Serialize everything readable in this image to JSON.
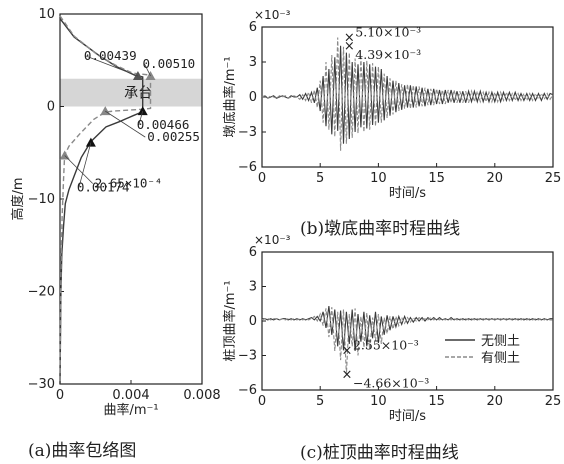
{
  "chart_data": [
    {
      "type": "line",
      "panel": "a",
      "caption": "(a)曲率包络图",
      "xlabel": "曲率/m⁻¹",
      "ylabel": "高度/m",
      "xlim": [
        0,
        0.008
      ],
      "ylim": [
        -30,
        10
      ],
      "xticks": [
        "0",
        "0.004",
        "0.008"
      ],
      "yticks": [
        "10",
        "0",
        "−10",
        "−20",
        "−30"
      ],
      "cap_label": "承台",
      "cap_range": [
        0,
        3
      ],
      "series": [
        {
          "name": "无侧土",
          "style": "solid",
          "x": [
            0,
            0.0008,
            0.0022,
            0.0032,
            0.0042,
            0.00466,
            0.00466,
            0.0046,
            0.0041,
            0.0034,
            0.0026,
            0.00174,
            0.0012,
            0.0008,
            0.0005,
            0.0003,
            0.0002,
            0.0001,
            5e-05,
            0
          ],
          "y": [
            9.5,
            7.5,
            5.5,
            4.3,
            3.4,
            3.2,
            -0.5,
            -0.6,
            -1,
            -1.6,
            -2.2,
            -3.8,
            -5.5,
            -7.5,
            -9,
            -10.5,
            -13,
            -16,
            -20,
            -30
          ]
        },
        {
          "name": "有侧土",
          "style": "dashed",
          "x": [
            0,
            0.0008,
            0.0021,
            0.0031,
            0.0041,
            0.0051,
            0.0051,
            0.0046,
            0.0038,
            0.003,
            0.00255,
            0.0019,
            0.0011,
            0.0005,
            0.00026,
            0.0002,
            0.00012,
            5e-05,
            0
          ],
          "y": [
            9.8,
            7.6,
            5.6,
            4.5,
            3.6,
            3.4,
            -0.2,
            -0.3,
            -0.4,
            -0.5,
            -0.6,
            -1.4,
            -3,
            -4.3,
            -5.3,
            -8,
            -12,
            -18,
            -30
          ]
        }
      ],
      "markers": [
        {
          "x": 0.00439,
          "y": 3.3,
          "color": "#555555",
          "label": "0.00439"
        },
        {
          "x": 0.0051,
          "y": 3.3,
          "color": "#888888",
          "label": "0.00510"
        },
        {
          "x": 0.00466,
          "y": -0.5,
          "color": "#111111",
          "label": "0.00466"
        },
        {
          "x": 0.00255,
          "y": -0.5,
          "color": "#888888",
          "label": "0.00255"
        },
        {
          "x": 0.00174,
          "y": -3.9,
          "color": "#111111",
          "label": "0.00174"
        },
        {
          "x": 0.000265,
          "y": -5.3,
          "color": "#888888",
          "label": "2.65×10⁻⁴"
        }
      ]
    },
    {
      "type": "line",
      "panel": "b",
      "caption": "(b)墩底曲率时程曲线",
      "xlabel": "时间/s",
      "ylabel": "墩底曲率/m⁻¹",
      "scale_label": "×10⁻³",
      "xlim": [
        0,
        25
      ],
      "ylim": [
        -6,
        6
      ],
      "xticks": [
        "0",
        "5",
        "10",
        "15",
        "20",
        "25"
      ],
      "yticks": [
        "6",
        "3",
        "0",
        "−3",
        "−6"
      ],
      "annotations": [
        {
          "x": 7.5,
          "y": 5.1,
          "label": "5.10×10⁻³"
        },
        {
          "x": 7.5,
          "y": 4.39,
          "label": "4.39×10⁻³"
        }
      ],
      "series": [
        {
          "name": "无侧土",
          "style": "solid",
          "x_start": 0,
          "dt": 0.25,
          "values": [
            0,
            0.1,
            -0.1,
            0,
            0.1,
            -0.1,
            0,
            0.1,
            0,
            -0.1,
            0.1,
            0,
            0,
            0.2,
            -0.2,
            0.3,
            -0.3,
            0.4,
            -0.5,
            0.8,
            -1.2,
            1.8,
            -2.5,
            2.4,
            -3.2,
            3.4,
            -2.9,
            4.39,
            -4.0,
            3.8,
            -3.6,
            3.0,
            -3.0,
            2.8,
            -2.6,
            3.0,
            -2.7,
            2.8,
            -2.4,
            2.6,
            -2.2,
            2.4,
            -2.0,
            1.8,
            -1.6,
            1.4,
            -1.3,
            1.2,
            -1.1,
            1.0,
            -0.9,
            1.0,
            -0.9,
            0.9,
            -0.8,
            0.8,
            -0.8,
            0.7,
            -0.7,
            0.7,
            -0.6,
            0.6,
            -0.6,
            0.6,
            -0.5,
            0.6,
            -0.5,
            0.5,
            -0.5,
            0.5,
            -0.5,
            0.5,
            -0.4,
            0.5,
            -0.4,
            0.5,
            -0.4,
            0.4,
            -0.4,
            0.4,
            -0.4,
            0.4,
            -0.4,
            0.4,
            -0.3,
            0.4,
            -0.3,
            0.4,
            -0.3,
            0.3,
            -0.3,
            0.3,
            -0.3,
            0.3,
            -0.3,
            0.3,
            -0.3,
            0.3,
            -0.2,
            0.3,
            0.2
          ]
        },
        {
          "name": "有侧土",
          "style": "dashed",
          "x_start": 0,
          "dt": 0.25,
          "values": [
            0,
            0.1,
            -0.1,
            0.1,
            0,
            -0.1,
            0.1,
            0,
            0.1,
            -0.1,
            0,
            0.1,
            0,
            -0.2,
            0.2,
            -0.3,
            0.4,
            -0.5,
            0.6,
            -0.9,
            1.4,
            -2.2,
            3.0,
            -2.8,
            3.6,
            -3.4,
            5.1,
            -4.6,
            4.3,
            -4.0,
            3.8,
            -3.5,
            3.3,
            -3.1,
            3.4,
            -3.0,
            3.1,
            -2.8,
            2.9,
            -2.5,
            2.6,
            -2.2,
            2.0,
            -1.8,
            1.6,
            -1.5,
            1.4,
            -1.2,
            1.1,
            -1.0,
            1.1,
            -1.0,
            1.0,
            -0.9,
            0.9,
            -0.8,
            0.8,
            -0.7,
            0.7,
            -0.7,
            0.7,
            -0.6,
            0.6,
            -0.6,
            0.6,
            -0.5,
            0.6,
            -0.5,
            0.5,
            -0.5,
            0.5,
            -0.5,
            0.5,
            -0.4,
            0.5,
            -0.4,
            0.4,
            -0.4,
            0.4,
            -0.4,
            0.4,
            -0.4,
            0.4,
            -0.3,
            0.4,
            -0.3,
            0.3,
            -0.3,
            0.3,
            -0.3,
            0.3,
            -0.3,
            0.3,
            -0.3,
            0.3,
            -0.2,
            0.3,
            -0.2,
            0.3,
            -0.2,
            0.2
          ]
        }
      ]
    },
    {
      "type": "line",
      "panel": "c",
      "caption": "(c)桩顶曲率时程曲线",
      "xlabel": "时间/s",
      "ylabel": "桩顶曲率/m⁻¹",
      "scale_label": "×10⁻³",
      "xlim": [
        0,
        25
      ],
      "ylim": [
        -6,
        6
      ],
      "xticks": [
        "0",
        "5",
        "10",
        "15",
        "20",
        "25"
      ],
      "yticks": [
        "6",
        "3",
        "0",
        "−3",
        "−6"
      ],
      "legend_position": "bottom-right",
      "annotations": [
        {
          "x": 7.3,
          "y": -2.55,
          "label": "2.55×10⁻³"
        },
        {
          "x": 7.3,
          "y": -4.66,
          "label": "−4.66×10⁻³"
        }
      ],
      "series": [
        {
          "name": "无侧土",
          "style": "solid",
          "x_start": 0,
          "dt": 0.25,
          "values": [
            0.2,
            0.2,
            0.1,
            0.2,
            0.1,
            0.2,
            0.1,
            0.2,
            0.2,
            0.1,
            0.2,
            0.1,
            0.2,
            0.1,
            0.2,
            0.1,
            0.2,
            0.3,
            0.1,
            0.4,
            0,
            0.8,
            -0.6,
            1.3,
            -1.2,
            1.0,
            -2.2,
            0.9,
            -2.55,
            0.8,
            -2.0,
            1.0,
            -2.6,
            0.6,
            -1.8,
            0.8,
            -2.2,
            0.5,
            -1.5,
            0.8,
            -1.9,
            0.4,
            -1.2,
            0.5,
            -0.8,
            0.4,
            -0.5,
            0.4,
            -0.3,
            0.4,
            -0.2,
            0.3,
            -0.1,
            0.3,
            0,
            0.3,
            0,
            0.3,
            0.1,
            0.3,
            0.1,
            0.3,
            0.1,
            0.2,
            0.1,
            0.3,
            0.1,
            0.2,
            0.1,
            0.2,
            0.1,
            0.2,
            0.1,
            0.2,
            0.1,
            0.2,
            0.1,
            0.2,
            0.1,
            0.2,
            0.1,
            0.2,
            0.1,
            0.2,
            0.1,
            0.2,
            0.1,
            0.2,
            0.1,
            0.2,
            0.1,
            0.2,
            0.1,
            0.2,
            0.1,
            0.2,
            0.1,
            0.2,
            0.1,
            0.2,
            0.2
          ]
        },
        {
          "name": "有侧土",
          "style": "dashed",
          "x_start": 0,
          "dt": 0.25,
          "values": [
            0.1,
            0.2,
            0.2,
            0.1,
            0.2,
            0.2,
            0.1,
            0.2,
            0.1,
            0.2,
            0.1,
            0.2,
            0.1,
            0.2,
            0.1,
            0.2,
            0.1,
            0.2,
            0.4,
            0,
            0.6,
            -0.4,
            1.1,
            -1.4,
            1.2,
            -2.6,
            0.8,
            -3.4,
            1.0,
            -4.66,
            0.6,
            -2.2,
            1.1,
            -3.0,
            0.4,
            -2.3,
            0.7,
            -2.5,
            0.3,
            -1.7,
            0.6,
            -2.0,
            0.3,
            -1.1,
            0.4,
            -0.7,
            0.4,
            -0.4,
            0.3,
            -0.2,
            0.3,
            -0.1,
            0.3,
            0,
            0.3,
            0.1,
            0.2,
            0.1,
            0.3,
            0.1,
            0.2,
            0.1,
            0.2,
            0.1,
            0.2,
            0.1,
            0.2,
            0.1,
            0.2,
            0.1,
            0.2,
            0.1,
            0.2,
            0.1,
            0.2,
            0.1,
            0.2,
            0.1,
            0.2,
            0.1,
            0.2,
            0.1,
            0.2,
            0.1,
            0.2,
            0.1,
            0.2,
            0.1,
            0.2,
            0.1,
            0.2,
            0.1,
            0.2,
            0.1,
            0.2,
            0.1,
            0.2,
            0.1,
            0.2,
            0.1,
            0.1
          ]
        }
      ]
    }
  ]
}
